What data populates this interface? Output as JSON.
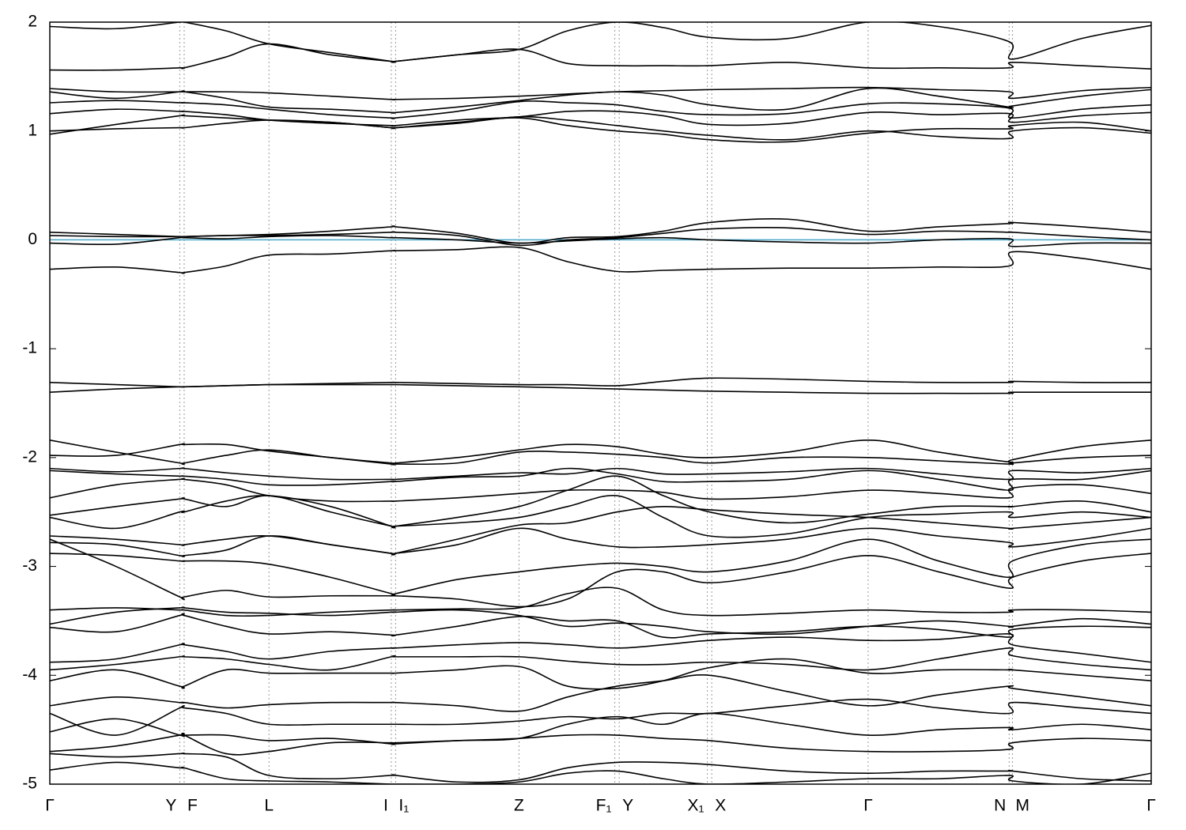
{
  "chart_data": {
    "type": "line",
    "color": "#000000",
    "fermi_level": 0,
    "fermi_color": "#4aa6c8",
    "grid": true,
    "xlim": [
      0,
      1
    ],
    "ylim": [
      -5,
      2
    ],
    "yticks": [
      -5,
      -4,
      -3,
      -2,
      -1,
      0,
      1,
      2
    ],
    "xticks": [
      {
        "value": 0,
        "label": "Γ"
      },
      {
        "value": 0.118,
        "label": "Y"
      },
      {
        "value": 0.122,
        "label": "F"
      },
      {
        "value": 0.199,
        "label": "L"
      },
      {
        "value": 0.31,
        "label": "I"
      },
      {
        "value": 0.314,
        "label": "I₁"
      },
      {
        "value": 0.426,
        "label": "Z"
      },
      {
        "value": 0.513,
        "label": "F₁"
      },
      {
        "value": 0.517,
        "label": "Y"
      },
      {
        "value": 0.597,
        "label": "X₁"
      },
      {
        "value": 0.601,
        "label": "X"
      },
      {
        "value": 0.743,
        "label": "Γ"
      },
      {
        "value": 0.871,
        "label": "N"
      },
      {
        "value": 0.874,
        "label": "M"
      },
      {
        "value": 1,
        "label": "Γ"
      }
    ],
    "x": [
      0,
      0.06,
      0.118,
      0.122,
      0.16,
      0.199,
      0.255,
      0.31,
      0.314,
      0.37,
      0.426,
      0.47,
      0.515,
      0.557,
      0.599,
      0.67,
      0.743,
      0.807,
      0.871,
      0.874,
      0.937,
      1
    ],
    "series": [
      {
        "values": [
          1.96,
          1.94,
          2.0,
          2.0,
          1.92,
          1.8,
          1.72,
          1.64,
          1.64,
          1.7,
          1.75,
          1.92,
          2.0,
          1.95,
          1.86,
          1.85,
          2.0,
          1.96,
          1.82,
          1.66,
          1.85,
          1.97
        ]
      },
      {
        "values": [
          1.56,
          1.56,
          1.58,
          1.58,
          1.68,
          1.8,
          1.7,
          1.64,
          1.64,
          1.7,
          1.75,
          1.62,
          1.6,
          1.6,
          1.6,
          1.63,
          1.58,
          1.58,
          1.58,
          1.63,
          1.6,
          1.57
        ]
      },
      {
        "values": [
          1.39,
          1.36,
          1.36,
          1.36,
          1.36,
          1.35,
          1.32,
          1.29,
          1.29,
          1.3,
          1.32,
          1.34,
          1.36,
          1.37,
          1.38,
          1.39,
          1.4,
          1.38,
          1.36,
          1.3,
          1.37,
          1.4
        ]
      },
      {
        "values": [
          1.36,
          1.3,
          1.36,
          1.36,
          1.3,
          1.22,
          1.2,
          1.17,
          1.17,
          1.22,
          1.28,
          1.33,
          1.36,
          1.33,
          1.24,
          1.2,
          1.39,
          1.32,
          1.22,
          1.23,
          1.32,
          1.38
        ]
      },
      {
        "values": [
          1.26,
          1.28,
          1.26,
          1.26,
          1.24,
          1.2,
          1.15,
          1.12,
          1.12,
          1.18,
          1.27,
          1.26,
          1.24,
          1.18,
          1.15,
          1.16,
          1.25,
          1.25,
          1.21,
          1.12,
          1.2,
          1.24
        ]
      },
      {
        "values": [
          1.16,
          1.2,
          1.18,
          1.18,
          1.15,
          1.1,
          1.07,
          1.05,
          1.05,
          1.1,
          1.13,
          1.18,
          1.18,
          1.14,
          1.06,
          1.07,
          1.17,
          1.15,
          1.16,
          1.08,
          1.14,
          1.17
        ]
      },
      {
        "values": [
          0.97,
          1.06,
          1.14,
          1.14,
          1.12,
          1.1,
          1.08,
          1.03,
          1.03,
          1.08,
          1.12,
          1.05,
          1.0,
          0.97,
          0.92,
          0.9,
          0.98,
          1.02,
          1.02,
          1.05,
          1.08,
          1.0
        ]
      },
      {
        "values": [
          1.0,
          1.02,
          1.03,
          1.03,
          1.07,
          1.1,
          1.08,
          1.03,
          1.03,
          1.07,
          1.13,
          1.1,
          1.05,
          1.0,
          0.96,
          0.92,
          1.0,
          0.95,
          0.93,
          1.0,
          1.03,
          0.98
        ]
      },
      {
        "values": [
          0.07,
          0.05,
          0.03,
          0.03,
          0.04,
          0.05,
          0.08,
          0.12,
          0.12,
          0.06,
          -0.03,
          0.02,
          0.03,
          0.08,
          0.16,
          0.19,
          0.08,
          0.12,
          0.15,
          0.16,
          0.12,
          0.07
        ]
      },
      {
        "values": [
          0.04,
          0.03,
          0.03,
          0.03,
          0.04,
          0.04,
          0.05,
          0.07,
          0.07,
          0.04,
          -0.05,
          0.0,
          0.02,
          0.06,
          0.1,
          0.11,
          0.05,
          0.08,
          0.07,
          0.07,
          0.03,
          0.0
        ]
      },
      {
        "values": [
          -0.03,
          -0.04,
          0.02,
          0.02,
          0.01,
          0.03,
          0.04,
          0.02,
          0.02,
          0.0,
          -0.03,
          -0.01,
          0.01,
          0.02,
          0.0,
          -0.02,
          -0.03,
          0.0,
          0.01,
          -0.06,
          -0.03,
          -0.03
        ]
      },
      {
        "values": [
          -0.27,
          -0.25,
          -0.3,
          -0.3,
          -0.24,
          -0.14,
          -0.13,
          -0.1,
          -0.1,
          -0.09,
          -0.07,
          -0.2,
          -0.29,
          -0.28,
          -0.27,
          -0.26,
          -0.26,
          -0.25,
          -0.24,
          -0.11,
          -0.17,
          -0.27
        ]
      },
      {
        "values": [
          -1.31,
          -1.33,
          -1.35,
          -1.35,
          -1.34,
          -1.33,
          -1.32,
          -1.31,
          -1.31,
          -1.32,
          -1.33,
          -1.33,
          -1.34,
          -1.3,
          -1.27,
          -1.28,
          -1.3,
          -1.31,
          -1.31,
          -1.3,
          -1.31,
          -1.31
        ]
      },
      {
        "values": [
          -1.4,
          -1.37,
          -1.35,
          -1.35,
          -1.34,
          -1.33,
          -1.33,
          -1.33,
          -1.33,
          -1.34,
          -1.35,
          -1.36,
          -1.37,
          -1.38,
          -1.39,
          -1.4,
          -1.41,
          -1.41,
          -1.41,
          -1.4,
          -1.4,
          -1.4
        ]
      },
      {
        "values": [
          -1.84,
          -1.95,
          -2.05,
          -2.05,
          -1.98,
          -1.93,
          -2.0,
          -2.05,
          -2.05,
          -2.0,
          -1.93,
          -1.88,
          -1.9,
          -1.97,
          -2.0,
          -1.95,
          -1.84,
          -1.95,
          -2.04,
          -2.02,
          -1.9,
          -1.84
        ]
      },
      {
        "values": [
          -1.98,
          -1.98,
          -1.88,
          -1.88,
          -1.88,
          -1.94,
          -2.0,
          -2.06,
          -2.06,
          -2.05,
          -1.95,
          -1.95,
          -1.97,
          -2.0,
          -2.05,
          -2.0,
          -2.0,
          -2.03,
          -2.06,
          -2.05,
          -2.0,
          -1.98
        ]
      },
      {
        "values": [
          -2.1,
          -2.13,
          -2.1,
          -2.1,
          -2.14,
          -2.17,
          -2.2,
          -2.2,
          -2.2,
          -2.17,
          -2.14,
          -2.15,
          -2.1,
          -2.15,
          -2.15,
          -2.13,
          -2.1,
          -2.15,
          -2.2,
          -2.12,
          -2.14,
          -2.1
        ]
      },
      {
        "values": [
          -2.12,
          -2.15,
          -2.17,
          -2.17,
          -2.2,
          -2.25,
          -2.25,
          -2.22,
          -2.22,
          -2.18,
          -2.17,
          -2.1,
          -2.15,
          -2.22,
          -2.22,
          -2.2,
          -2.12,
          -2.2,
          -2.3,
          -2.2,
          -2.2,
          -2.12
        ]
      },
      {
        "values": [
          -2.37,
          -2.25,
          -2.2,
          -2.2,
          -2.25,
          -2.35,
          -2.4,
          -2.4,
          -2.4,
          -2.37,
          -2.33,
          -2.3,
          -2.3,
          -2.32,
          -2.38,
          -2.36,
          -2.3,
          -2.33,
          -2.37,
          -2.28,
          -2.25,
          -2.33
        ]
      },
      {
        "values": [
          -2.53,
          -2.45,
          -2.38,
          -2.38,
          -2.45,
          -2.35,
          -2.5,
          -2.63,
          -2.63,
          -2.55,
          -2.45,
          -2.3,
          -2.17,
          -2.35,
          -2.5,
          -2.6,
          -2.52,
          -2.45,
          -2.45,
          -2.45,
          -2.4,
          -2.5
        ]
      },
      {
        "values": [
          -2.55,
          -2.65,
          -2.5,
          -2.5,
          -2.4,
          -2.35,
          -2.45,
          -2.63,
          -2.63,
          -2.6,
          -2.55,
          -2.45,
          -2.35,
          -2.55,
          -2.72,
          -2.7,
          -2.55,
          -2.52,
          -2.5,
          -2.55,
          -2.5,
          -2.55
        ]
      },
      {
        "values": [
          -2.72,
          -2.75,
          -2.8,
          -2.8,
          -2.75,
          -2.72,
          -2.8,
          -2.88,
          -2.88,
          -2.75,
          -2.62,
          -2.6,
          -2.5,
          -2.45,
          -2.48,
          -2.52,
          -2.55,
          -2.6,
          -2.65,
          -2.65,
          -2.6,
          -2.55
        ]
      },
      {
        "values": [
          -2.78,
          -2.8,
          -2.9,
          -2.9,
          -2.85,
          -2.72,
          -2.8,
          -2.88,
          -2.88,
          -2.8,
          -2.65,
          -2.75,
          -2.82,
          -2.82,
          -2.8,
          -2.75,
          -2.65,
          -2.72,
          -2.78,
          -2.82,
          -2.75,
          -2.65
        ]
      },
      {
        "values": [
          -2.88,
          -2.9,
          -2.95,
          -2.95,
          -2.95,
          -2.98,
          -3.1,
          -3.25,
          -3.25,
          -3.12,
          -3.05,
          -3.0,
          -2.97,
          -3.0,
          -3.05,
          -2.95,
          -2.75,
          -2.95,
          -3.1,
          -2.95,
          -2.8,
          -2.75
        ]
      },
      {
        "values": [
          -2.75,
          -3.0,
          -3.28,
          -3.28,
          -3.22,
          -3.28,
          -3.27,
          -3.27,
          -3.27,
          -3.3,
          -3.37,
          -3.3,
          -3.05,
          -3.05,
          -3.15,
          -3.05,
          -2.9,
          -3.05,
          -3.2,
          -3.1,
          -2.95,
          -2.88
        ]
      },
      {
        "values": [
          -3.4,
          -3.38,
          -3.4,
          -3.4,
          -3.45,
          -3.45,
          -3.42,
          -3.4,
          -3.4,
          -3.39,
          -3.38,
          -3.25,
          -3.2,
          -3.4,
          -3.45,
          -3.43,
          -3.4,
          -3.42,
          -3.42,
          -3.4,
          -3.4,
          -3.42
        ]
      },
      {
        "values": [
          -3.53,
          -3.42,
          -3.38,
          -3.38,
          -3.42,
          -3.43,
          -3.45,
          -3.42,
          -3.42,
          -3.4,
          -3.45,
          -3.55,
          -3.52,
          -3.55,
          -3.6,
          -3.62,
          -3.55,
          -3.5,
          -3.55,
          -3.55,
          -3.48,
          -3.53
        ]
      },
      {
        "values": [
          -3.56,
          -3.6,
          -3.45,
          -3.45,
          -3.55,
          -3.62,
          -3.6,
          -3.63,
          -3.63,
          -3.55,
          -3.46,
          -3.5,
          -3.5,
          -3.65,
          -3.62,
          -3.6,
          -3.55,
          -3.58,
          -3.65,
          -3.58,
          -3.55,
          -3.56
        ]
      },
      {
        "values": [
          -3.88,
          -3.85,
          -3.72,
          -3.72,
          -3.78,
          -3.85,
          -3.78,
          -3.75,
          -3.75,
          -3.72,
          -3.7,
          -3.72,
          -3.75,
          -3.72,
          -3.68,
          -3.65,
          -3.68,
          -3.67,
          -3.62,
          -3.72,
          -3.8,
          -3.88
        ]
      },
      {
        "values": [
          -3.95,
          -3.9,
          -3.83,
          -3.83,
          -3.85,
          -3.9,
          -3.95,
          -3.83,
          -3.83,
          -3.83,
          -3.83,
          -3.87,
          -3.9,
          -3.9,
          -3.88,
          -3.9,
          -3.95,
          -3.85,
          -3.75,
          -3.82,
          -3.9,
          -3.95
        ]
      },
      {
        "values": [
          -4.05,
          -3.95,
          -4.1,
          -4.1,
          -3.95,
          -3.98,
          -3.98,
          -3.98,
          -3.98,
          -3.95,
          -3.92,
          -4.1,
          -4.12,
          -4.05,
          -3.93,
          -3.85,
          -3.98,
          -3.95,
          -3.95,
          -3.95,
          -4.0,
          -4.05
        ]
      },
      {
        "values": [
          -4.28,
          -4.2,
          -4.25,
          -4.25,
          -4.3,
          -4.27,
          -4.25,
          -4.25,
          -4.25,
          -4.28,
          -4.33,
          -4.2,
          -4.1,
          -4.05,
          -4.0,
          -4.15,
          -4.28,
          -4.18,
          -4.1,
          -4.12,
          -4.2,
          -4.28
        ]
      },
      {
        "values": [
          -4.35,
          -4.55,
          -4.3,
          -4.3,
          -4.35,
          -4.45,
          -4.45,
          -4.45,
          -4.45,
          -4.45,
          -4.42,
          -4.38,
          -4.4,
          -4.35,
          -4.35,
          -4.28,
          -4.22,
          -4.3,
          -4.35,
          -4.25,
          -4.3,
          -4.35
        ]
      },
      {
        "values": [
          -4.52,
          -4.4,
          -4.55,
          -4.55,
          -4.55,
          -4.6,
          -4.58,
          -4.63,
          -4.63,
          -4.6,
          -4.58,
          -4.45,
          -4.38,
          -4.45,
          -4.35,
          -4.45,
          -4.55,
          -4.5,
          -4.48,
          -4.5,
          -4.45,
          -4.5
        ]
      },
      {
        "values": [
          -4.7,
          -4.65,
          -4.55,
          -4.55,
          -4.72,
          -4.7,
          -4.62,
          -4.62,
          -4.62,
          -4.6,
          -4.58,
          -4.55,
          -4.55,
          -4.58,
          -4.6,
          -4.67,
          -4.7,
          -4.7,
          -4.68,
          -4.62,
          -4.58,
          -4.6
        ]
      },
      {
        "values": [
          -4.72,
          -4.75,
          -4.72,
          -4.72,
          -4.75,
          -4.92,
          -4.95,
          -4.92,
          -4.92,
          -4.98,
          -4.96,
          -4.85,
          -4.8,
          -4.8,
          -4.82,
          -4.88,
          -4.9,
          -4.88,
          -4.88,
          -4.88,
          -4.95,
          -4.97
        ]
      },
      {
        "values": [
          -4.87,
          -4.8,
          -4.85,
          -4.85,
          -4.95,
          -4.97,
          -4.98,
          -5.0,
          -5.0,
          -5.0,
          -4.98,
          -4.9,
          -4.88,
          -4.95,
          -5.0,
          -4.98,
          -4.95,
          -4.95,
          -4.92,
          -4.97,
          -5.0,
          -4.9
        ]
      }
    ]
  }
}
